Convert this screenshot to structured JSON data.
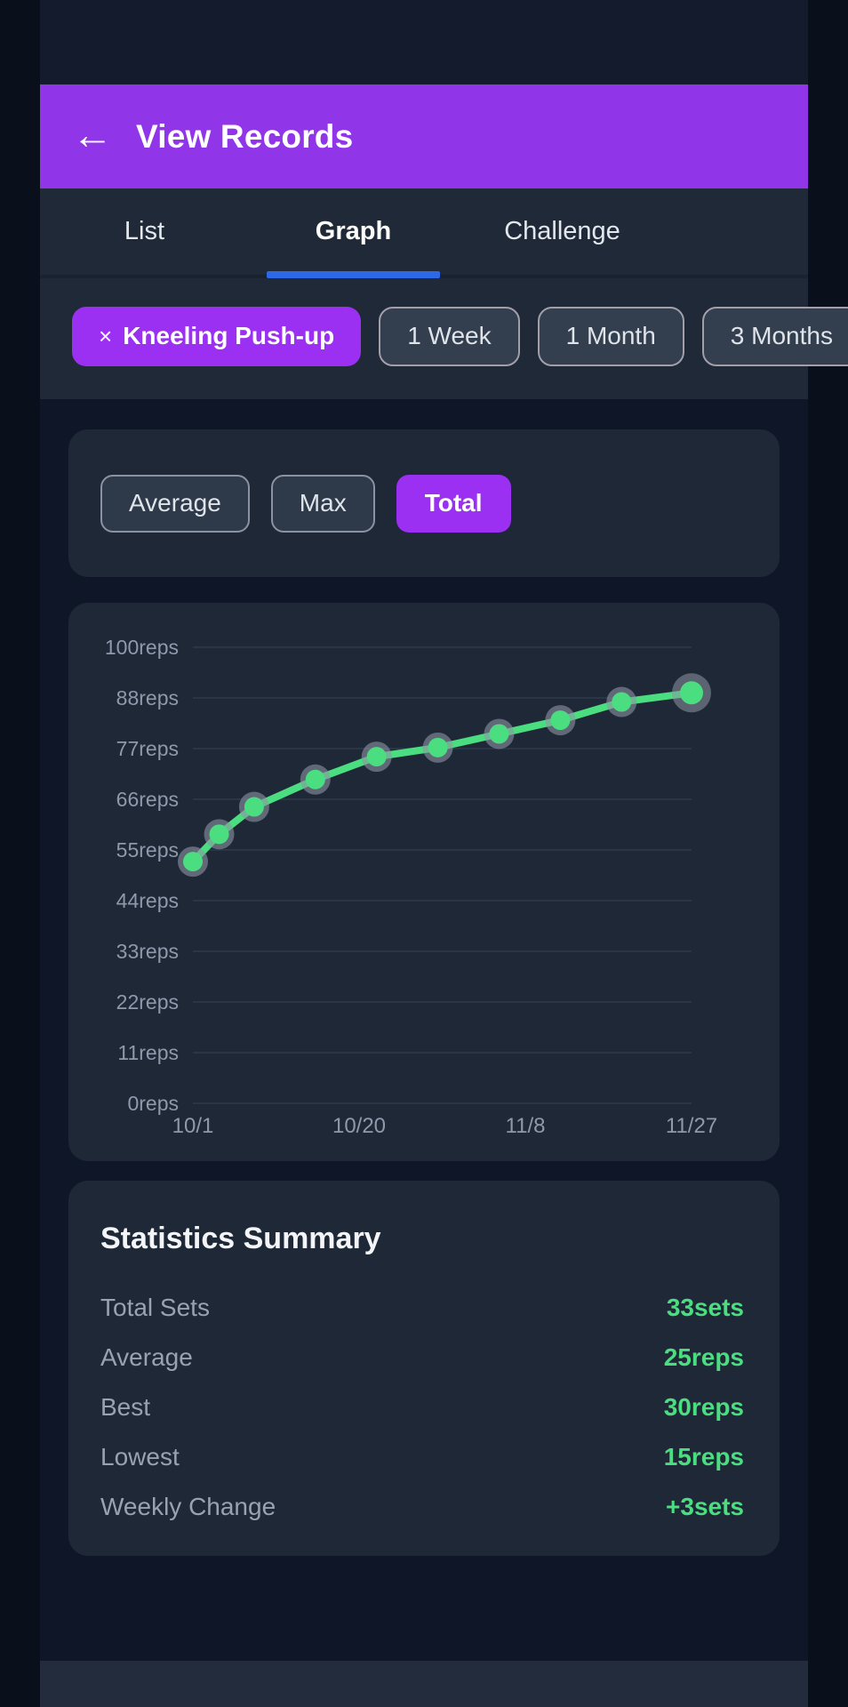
{
  "header": {
    "back_icon": "←",
    "title": "View Records"
  },
  "tabs": [
    {
      "label": "List",
      "active": false
    },
    {
      "label": "Graph",
      "active": true
    },
    {
      "label": "Challenge",
      "active": false
    }
  ],
  "filters": {
    "exercise": {
      "remove_icon": "×",
      "label": "Kneeling Push-up",
      "selected": true
    },
    "periods": [
      {
        "label": "1 Week"
      },
      {
        "label": "1 Month"
      },
      {
        "label": "3 Months"
      }
    ]
  },
  "metric_buttons": [
    {
      "label": "Average",
      "active": false
    },
    {
      "label": "Max",
      "active": false
    },
    {
      "label": "Total",
      "active": true
    }
  ],
  "chart_data": {
    "type": "line",
    "unit": "reps",
    "y_ticks": [
      "100reps",
      "88reps",
      "77reps",
      "66reps",
      "55reps",
      "44reps",
      "33reps",
      "22reps",
      "11reps",
      "0reps"
    ],
    "ylim": [
      0,
      100
    ],
    "x_ticks": [
      "10/1",
      "10/20",
      "11/8",
      "11/27"
    ],
    "x_tick_days": [
      0,
      19,
      38,
      57
    ],
    "x_range_days": 57,
    "series": [
      {
        "name": "Kneeling Push-up total reps",
        "points": [
          {
            "day": 0,
            "value": 53
          },
          {
            "day": 3,
            "value": 59
          },
          {
            "day": 7,
            "value": 65
          },
          {
            "day": 14,
            "value": 71
          },
          {
            "day": 21,
            "value": 76
          },
          {
            "day": 28,
            "value": 78
          },
          {
            "day": 35,
            "value": 81
          },
          {
            "day": 42,
            "value": 84
          },
          {
            "day": 49,
            "value": 88
          },
          {
            "day": 57,
            "value": 90
          }
        ]
      }
    ],
    "grid": true,
    "legend": false,
    "line_color": "#4ade80",
    "point_color": "#4ade80",
    "point_halo_color": "#8e95a4",
    "grid_color": "#2a3547",
    "axis_text_color": "#8e99ac"
  },
  "stats": {
    "title": "Statistics Summary",
    "rows": [
      {
        "label": "Total Sets",
        "value": "33sets"
      },
      {
        "label": "Average",
        "value": "25reps"
      },
      {
        "label": "Best",
        "value": "30reps"
      },
      {
        "label": "Lowest",
        "value": "15reps"
      },
      {
        "label": "Weekly Change",
        "value": "+3sets"
      }
    ]
  },
  "colors": {
    "header_purple": "#9135e9",
    "accent_purple": "#9b2ff2",
    "tab_underline_blue": "#2d68e8",
    "value_green": "#4ade80",
    "card_bg": "#1f2837",
    "section_bg": "#202937",
    "page_bg": "#0f1627"
  }
}
